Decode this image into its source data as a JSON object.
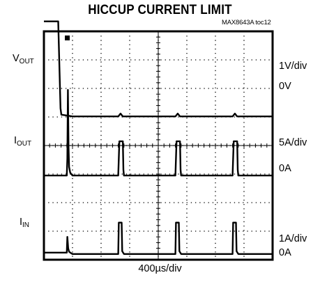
{
  "title": "HICCUP CURRENT LIMIT",
  "figure_tag": "MAX8643A toc12",
  "xlabel": "400µs/div",
  "channels": [
    {
      "label_main": "V",
      "label_sub": "OUT",
      "scale": "1V/div",
      "zero": "0V"
    },
    {
      "label_main": "I",
      "label_sub": "OUT",
      "scale": "5A/div",
      "zero": "0A"
    },
    {
      "label_main": "I",
      "label_sub": "IN",
      "scale": "1A/div",
      "zero": "0A"
    }
  ],
  "colors": {
    "trace": "#000000",
    "grid": "#000000",
    "background": "#ffffff"
  },
  "chart_data": {
    "type": "line",
    "title": "HICCUP CURRENT LIMIT",
    "xlabel": "400µs/div",
    "ylabel": "",
    "grid": true,
    "x_divisions": 8,
    "y_divisions": 8,
    "x_unit": "div",
    "series": [
      {
        "name": "VOUT",
        "units": "V",
        "divisions_per_scale": "1V/div",
        "zero_at_div": 5.0,
        "x": [
          0,
          0.5,
          0.55,
          0.58,
          0.61,
          1.0,
          2.0,
          2.6,
          2.68,
          2.76,
          3.0,
          4.0,
          4.6,
          4.68,
          4.76,
          5.0,
          6.0,
          6.6,
          6.68,
          6.76,
          7.0,
          8.0
        ],
        "values": [
          3.35,
          3.35,
          1.5,
          0.3,
          0.08,
          0.02,
          0.02,
          0.02,
          0.12,
          0.02,
          0.02,
          0.02,
          0.02,
          0.12,
          0.02,
          0.02,
          0.02,
          0.02,
          0.12,
          0.02,
          0.02,
          0.02
        ]
      },
      {
        "name": "IOUT",
        "units": "A",
        "divisions_per_scale": "5A/div",
        "zero_at_div": 2.95,
        "x": [
          0,
          0.8,
          0.82,
          0.84,
          0.86,
          0.88,
          0.92,
          1.0,
          2.0,
          2.6,
          2.64,
          2.68,
          2.76,
          2.78,
          2.8,
          3.0,
          4.0,
          4.6,
          4.64,
          4.68,
          4.76,
          4.78,
          4.8,
          5.0,
          6.0,
          6.6,
          6.64,
          6.68,
          6.76,
          6.78,
          6.8,
          7.0,
          8.0
        ],
        "values": [
          0,
          0,
          3.0,
          15.0,
          5.0,
          1.5,
          0.5,
          0,
          0,
          0,
          6.0,
          6.0,
          6.0,
          1.0,
          0,
          0,
          0,
          0,
          6.0,
          6.0,
          6.0,
          1.0,
          0,
          0,
          0,
          0,
          6.0,
          6.0,
          6.0,
          1.0,
          0,
          0,
          0
        ]
      },
      {
        "name": "IIN",
        "units": "A",
        "divisions_per_scale": "1A/div",
        "zero_at_div": 0.2,
        "x": [
          0,
          0.8,
          0.82,
          0.85,
          0.88,
          0.95,
          1.0,
          2.0,
          2.6,
          2.62,
          2.72,
          2.74,
          2.8,
          3.0,
          4.0,
          4.6,
          4.62,
          4.72,
          4.74,
          4.8,
          5.0,
          6.0,
          6.6,
          6.62,
          6.72,
          6.74,
          6.8,
          7.0,
          8.0
        ],
        "values": [
          0.05,
          0.05,
          0.6,
          0.2,
          0.08,
          0.03,
          0,
          0,
          0,
          1.1,
          1.1,
          0.1,
          0,
          0,
          0,
          0,
          1.1,
          1.1,
          0.1,
          0,
          0,
          0,
          0,
          1.1,
          1.1,
          0.1,
          0,
          0,
          0
        ]
      }
    ]
  }
}
